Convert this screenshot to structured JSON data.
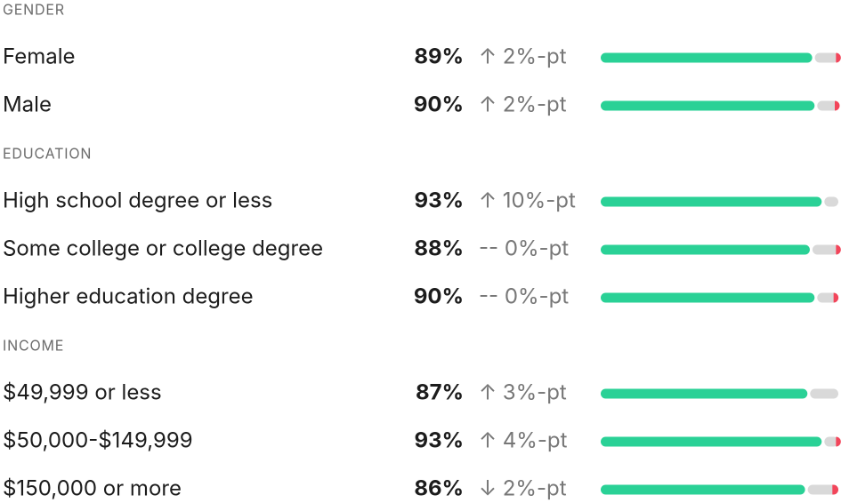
{
  "groups": [
    {
      "title": "GENDER",
      "rows": [
        {
          "label": "Female",
          "value": "89%",
          "change": "↑ 2%-pt",
          "share": 89,
          "negative": 1
        },
        {
          "label": "Male",
          "value": "90%",
          "change": "↑ 2%-pt",
          "share": 90,
          "negative": 1.5
        }
      ]
    },
    {
      "title": "EDUCATION",
      "rows": [
        {
          "label": "High school degree or less",
          "value": "93%",
          "change": "↑ 10%-pt",
          "share": 93,
          "negative": 0
        },
        {
          "label": "Some college or college degree",
          "value": "88%",
          "change": "-- 0%-pt",
          "share": 88,
          "negative": 1
        },
        {
          "label": "Higher education degree",
          "value": "90%",
          "change": "-- 0%-pt",
          "share": 90,
          "negative": 2
        }
      ]
    },
    {
      "title": "INCOME",
      "rows": [
        {
          "label": "$49,999 or less",
          "value": "87%",
          "change": "↑ 3%-pt",
          "share": 87,
          "negative": 0
        },
        {
          "label": "$50,000-$149,999",
          "value": "93%",
          "change": "↑ 4%-pt",
          "share": 93,
          "negative": 1
        },
        {
          "label": "$150,000 or more",
          "value": "86%",
          "change": "↓ 2%-pt",
          "share": 86,
          "negative": 2.5
        }
      ]
    }
  ]
}
